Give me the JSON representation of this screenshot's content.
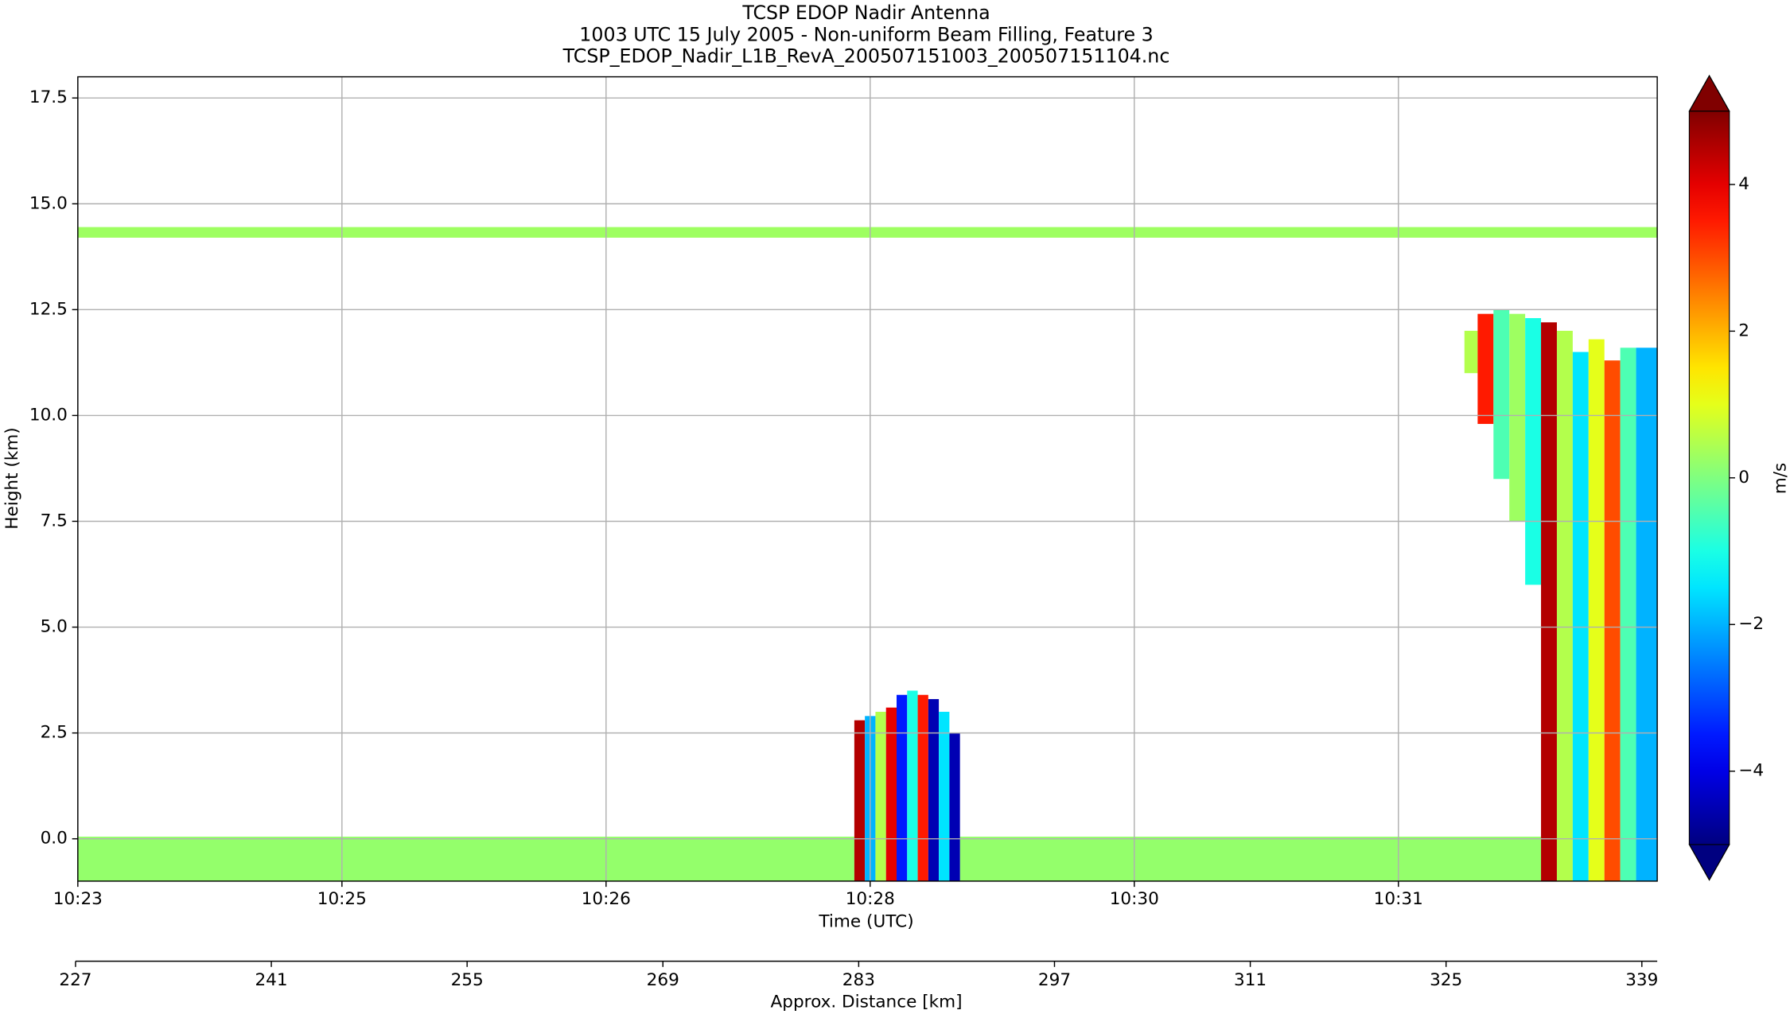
{
  "chart_data": {
    "type": "heatmap",
    "title_lines": [
      "TCSP EDOP Nadir Antenna",
      "1003 UTC 15 July 2005 - Non-uniform Beam Filling, Feature 3",
      "TCSP_EDOP_Nadir_L1B_RevA_200507151003_200507151104.nc"
    ],
    "x_label": "Time (UTC)",
    "y_label": "Height (km)",
    "x2_label": "Approx. Distance [km]",
    "colorbar_label": "m/s",
    "colormap": "jet",
    "colorbar_extend": "both",
    "grid": true,
    "xlim": [
      0,
      5.98
    ],
    "xticks": [
      {
        "value": 0,
        "label": "10:23"
      },
      {
        "value": 1,
        "label": "10:25"
      },
      {
        "value": 2,
        "label": "10:26"
      },
      {
        "value": 3,
        "label": "10:28"
      },
      {
        "value": 4,
        "label": "10:30"
      },
      {
        "value": 5,
        "label": "10:31"
      }
    ],
    "ylim": [
      -1,
      18
    ],
    "yticks": [
      {
        "value": 0,
        "label": "0.0"
      },
      {
        "value": 2.5,
        "label": "2.5"
      },
      {
        "value": 5,
        "label": "5.0"
      },
      {
        "value": 7.5,
        "label": "7.5"
      },
      {
        "value": 10,
        "label": "10.0"
      },
      {
        "value": 12.5,
        "label": "12.5"
      },
      {
        "value": 15,
        "label": "15.0"
      },
      {
        "value": 17.5,
        "label": "17.5"
      }
    ],
    "x2lim": [
      227,
      340.1
    ],
    "x2ticks": [
      227,
      241,
      255,
      269,
      283,
      297,
      311,
      325,
      339
    ],
    "clim": [
      -5,
      5
    ],
    "cticks": [
      {
        "value": -4,
        "label": "−4"
      },
      {
        "value": -2,
        "label": "−2"
      },
      0,
      2,
      4
    ],
    "cells": [
      [
        0,
        2.94,
        -1,
        0.05,
        0.2
      ],
      [
        3.34,
        5.54,
        -1,
        0.05,
        0.2
      ],
      [
        0,
        5.98,
        14.2,
        14.45,
        0.3
      ],
      [
        2.94,
        2.98,
        -1,
        2.8,
        4.5
      ],
      [
        2.98,
        3.02,
        -1,
        2.9,
        -2
      ],
      [
        3.02,
        3.06,
        -1,
        3.0,
        0.5
      ],
      [
        3.06,
        3.1,
        -1,
        3.1,
        4
      ],
      [
        3.1,
        3.14,
        -1,
        3.4,
        -3.5
      ],
      [
        3.14,
        3.18,
        -1,
        3.5,
        -1
      ],
      [
        3.18,
        3.22,
        -1,
        3.4,
        3.5
      ],
      [
        3.22,
        3.26,
        -1,
        3.3,
        -4.5
      ],
      [
        3.26,
        3.3,
        -1,
        3.0,
        -1.5
      ],
      [
        3.3,
        3.34,
        -1,
        2.5,
        -4.5
      ],
      [
        5.25,
        5.3,
        11.0,
        12.0,
        0.5
      ],
      [
        5.3,
        5.36,
        9.8,
        12.4,
        3.5
      ],
      [
        5.36,
        5.42,
        8.5,
        12.5,
        -0.5
      ],
      [
        5.42,
        5.48,
        7.5,
        12.4,
        0.3
      ],
      [
        5.48,
        5.54,
        6.0,
        12.3,
        -1
      ],
      [
        5.54,
        5.6,
        -1,
        12.2,
        4.5
      ],
      [
        5.6,
        5.66,
        -1,
        12.0,
        0.5
      ],
      [
        5.66,
        5.72,
        -1,
        11.5,
        -1.5
      ],
      [
        5.72,
        5.78,
        -1,
        11.8,
        1
      ],
      [
        5.78,
        5.84,
        -1,
        11.3,
        3
      ],
      [
        5.84,
        5.9,
        -1,
        11.6,
        -0.5
      ],
      [
        5.9,
        5.98,
        -1,
        11.6,
        -2
      ]
    ]
  }
}
